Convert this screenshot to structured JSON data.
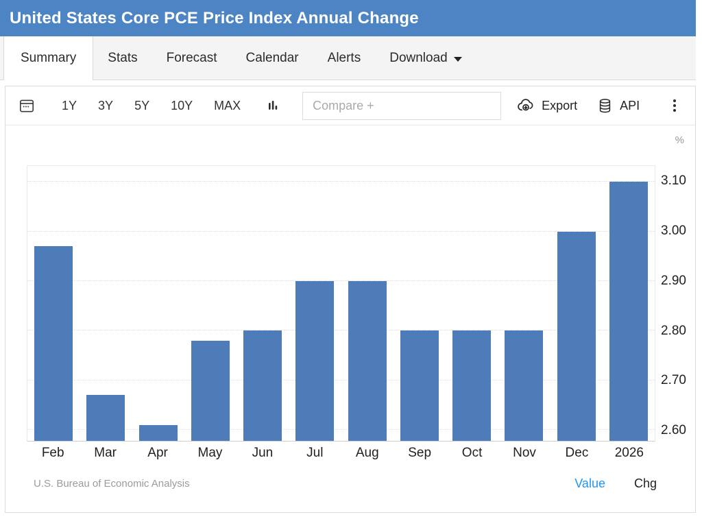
{
  "header": {
    "title": "United States Core PCE Price Index Annual Change"
  },
  "tabs": [
    {
      "label": "Summary",
      "active": true
    },
    {
      "label": "Stats",
      "active": false
    },
    {
      "label": "Forecast",
      "active": false
    },
    {
      "label": "Calendar",
      "active": false
    },
    {
      "label": "Alerts",
      "active": false
    },
    {
      "label": "Download",
      "active": false,
      "has_caret": true
    }
  ],
  "toolbar": {
    "ranges": [
      "1Y",
      "3Y",
      "5Y",
      "10Y",
      "MAX"
    ],
    "compare_placeholder": "Compare +",
    "export_label": "Export",
    "api_label": "API",
    "icons": {
      "calendar": "calendar-icon",
      "chart_type": "bar-chart-icon",
      "export": "cloud-download-icon",
      "api": "database-icon",
      "menu": "kebab-menu-icon"
    }
  },
  "chart_data": {
    "type": "bar",
    "title": "United States Core PCE Price Index Annual Change",
    "categories": [
      "Feb",
      "Mar",
      "Apr",
      "May",
      "Jun",
      "Jul",
      "Aug",
      "Sep",
      "Oct",
      "Nov",
      "Dec",
      "2026"
    ],
    "values": [
      2.97,
      2.67,
      2.61,
      2.78,
      2.8,
      2.9,
      2.9,
      2.8,
      2.8,
      2.8,
      3.0,
      3.1
    ],
    "unit": "%",
    "ylabel": "%",
    "y_ticks": [
      2.6,
      2.7,
      2.8,
      2.9,
      3.0,
      3.1
    ],
    "ylim": [
      2.578,
      3.132
    ],
    "grid": true,
    "legend_position": "bottom-right",
    "bar_color": "#4e7cb9",
    "source": "U.S. Bureau of Economic Analysis"
  },
  "footer": {
    "source": "U.S. Bureau of Economic Analysis",
    "value_label": "Value",
    "chg_label": "Chg",
    "value_color": "#2196f3"
  }
}
